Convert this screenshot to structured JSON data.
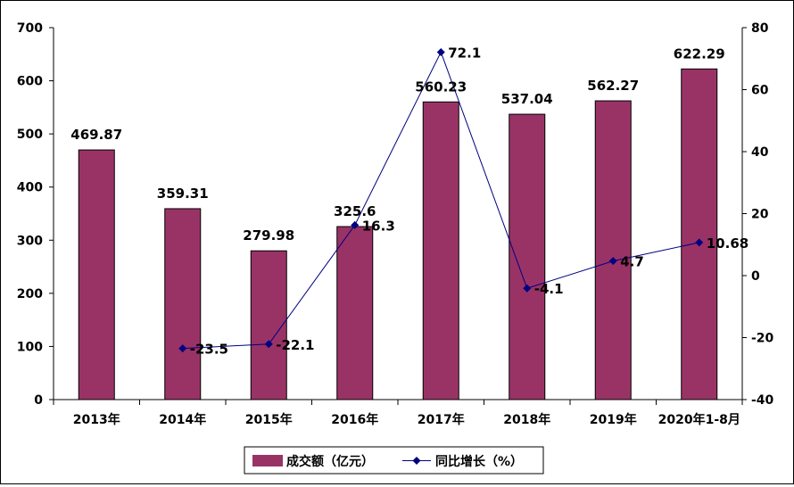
{
  "chart_data": {
    "type": "bar",
    "categories": [
      "2013年",
      "2014年",
      "2015年",
      "2016年",
      "2017年",
      "2018年",
      "2019年",
      "2020年1-8月"
    ],
    "series": [
      {
        "name": "成交额（亿元）",
        "type": "bar",
        "axis": "left",
        "values": [
          469.87,
          359.31,
          279.98,
          325.6,
          560.23,
          537.04,
          562.27,
          622.29
        ],
        "labels": [
          "469.87",
          "359.31",
          "279.98",
          "325.6",
          "560.23",
          "537.04",
          "562.27",
          "622.29"
        ],
        "color": "#993366"
      },
      {
        "name": "同比增长（%）",
        "type": "line",
        "axis": "right",
        "values": [
          null,
          -23.5,
          -22.1,
          16.3,
          72.1,
          -4.1,
          4.7,
          10.68
        ],
        "labels": [
          "",
          "-23.5",
          "-22.1",
          "16.3",
          "72.1",
          "-4.1",
          "4.7",
          "10.68"
        ],
        "color": "#000080"
      }
    ],
    "y_left": {
      "min": 0,
      "max": 700,
      "ticks": [
        "0",
        "100",
        "200",
        "300",
        "400",
        "500",
        "600",
        "700"
      ]
    },
    "y_right": {
      "min": -40,
      "max": 80,
      "ticks": [
        "-40",
        "-20",
        "0",
        "20",
        "40",
        "60",
        "80"
      ]
    },
    "grid": false,
    "legend": "bottom"
  }
}
